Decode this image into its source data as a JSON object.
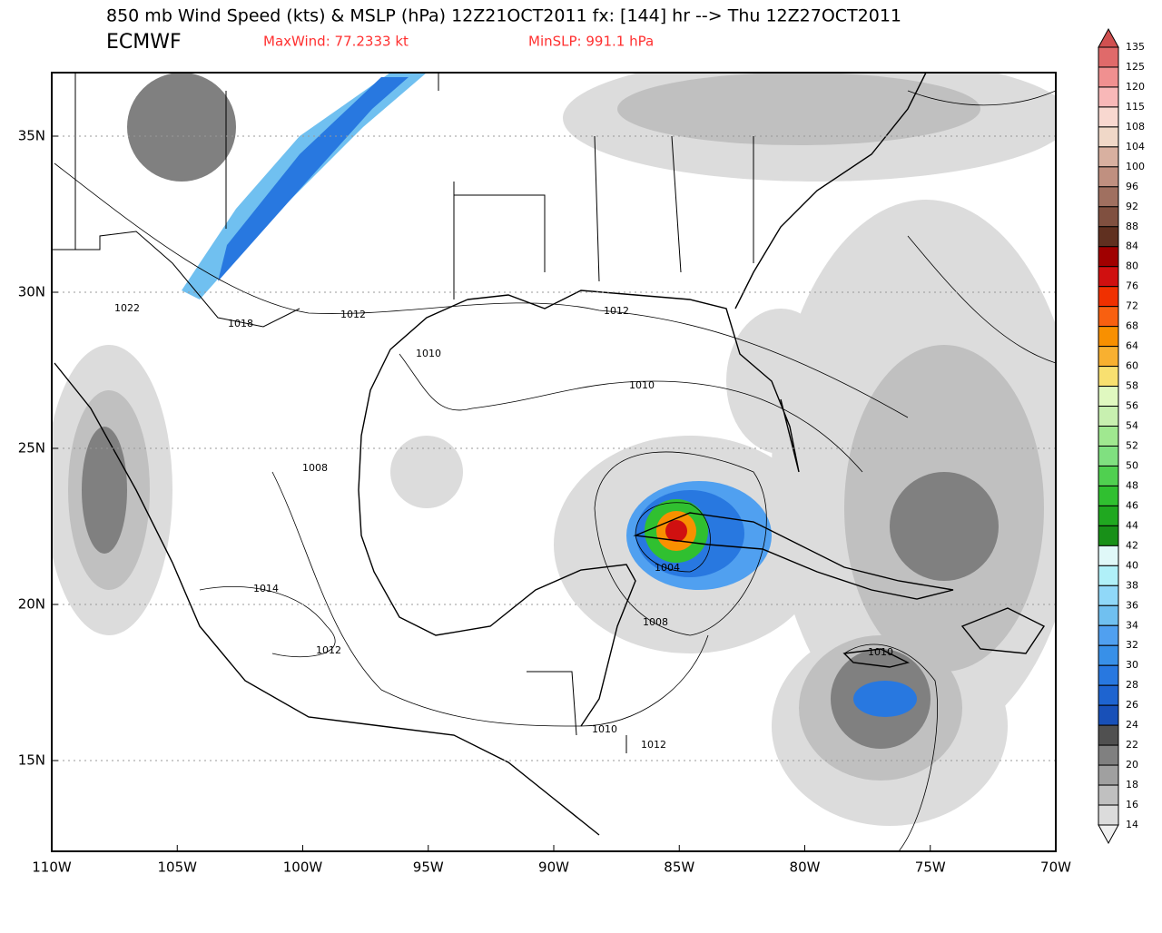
{
  "header": {
    "title": "850 mb Wind Speed (kts) & MSLP (hPa) 12Z21OCT2011 fx: [144] hr --> Thu 12Z27OCT2011",
    "model": "ECMWF",
    "max_wind": "MaxWind: 77.2333 kt",
    "min_slp": "MinSLP: 991.1 hPa"
  },
  "axes": {
    "lon_labels": [
      "110W",
      "105W",
      "100W",
      "95W",
      "90W",
      "85W",
      "80W",
      "75W",
      "70W"
    ],
    "lat_labels": [
      "35N",
      "30N",
      "25N",
      "20N",
      "15N"
    ]
  },
  "colorbar": {
    "labels": [
      "135",
      "125",
      "120",
      "115",
      "108",
      "104",
      "100",
      "96",
      "92",
      "88",
      "84",
      "80",
      "76",
      "72",
      "68",
      "64",
      "60",
      "58",
      "56",
      "54",
      "52",
      "50",
      "48",
      "46",
      "44",
      "42",
      "40",
      "38",
      "36",
      "34",
      "32",
      "30",
      "28",
      "26",
      "24",
      "22",
      "20",
      "18",
      "16",
      "14"
    ],
    "colors": [
      "#d05050",
      "#e06a6a",
      "#f09090",
      "#f8b8b8",
      "#f8d8d0",
      "#f0d8c8",
      "#d8b0a0",
      "#c09080",
      "#a07060",
      "#805040",
      "#603020",
      "#a00000",
      "#d01010",
      "#f03000",
      "#f86010",
      "#f89000",
      "#f8b030",
      "#f8e070",
      "#e0f8c0",
      "#c8f0b0",
      "#a0e890",
      "#80e080",
      "#50d050",
      "#30c030",
      "#20a820",
      "#189018",
      "#e0f8f8",
      "#b0f0f8",
      "#90d8f8",
      "#70c0f0",
      "#50a0f0",
      "#3890e8",
      "#2878e0",
      "#1e64d0",
      "#1850b8",
      "#505050",
      "#808080",
      "#a0a0a0",
      "#c0c0c0",
      "#dcdcdc",
      "#f0f0f0"
    ]
  },
  "contours": {
    "labels": [
      "1022",
      "1018",
      "1012",
      "1010",
      "1012",
      "1010",
      "1008",
      "1004",
      "1008",
      "1014",
      "1012",
      "1010",
      "1010",
      "1012"
    ]
  }
}
